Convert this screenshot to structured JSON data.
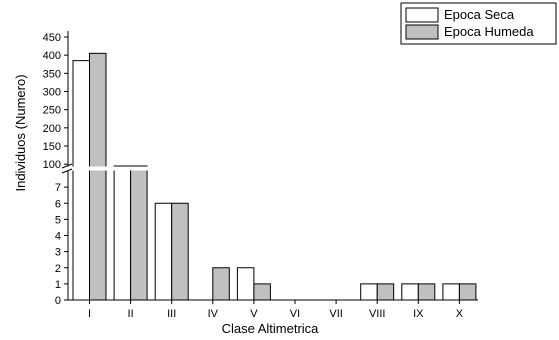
{
  "chart_data": {
    "type": "bar",
    "title": "",
    "xlabel": "Clase Altimetrica",
    "ylabel": "Individuos (Numero)",
    "categories": [
      "I",
      "II",
      "III",
      "IV",
      "V",
      "VI",
      "VII",
      "VIII",
      "IX",
      "X"
    ],
    "series": [
      {
        "name": "Epoca Seca",
        "color": "#ffffff",
        "values": [
          385,
          95,
          6,
          0,
          2,
          0,
          0,
          1,
          1,
          1
        ]
      },
      {
        "name": "Epoca Humeda",
        "color": "#c0c0c0",
        "values": [
          405,
          95,
          6,
          2,
          1,
          0,
          0,
          1,
          1,
          1
        ]
      }
    ],
    "y_axis": {
      "broken": true,
      "lower_range": [
        0,
        8
      ],
      "upper_range": [
        95,
        450
      ],
      "lower_ticks": [
        "0",
        "1",
        "2",
        "3",
        "4",
        "5",
        "6",
        "7"
      ],
      "upper_ticks": [
        "100",
        "150",
        "200",
        "250",
        "300",
        "350",
        "400",
        "450"
      ]
    },
    "grid": false,
    "legend_position": "top-right"
  }
}
